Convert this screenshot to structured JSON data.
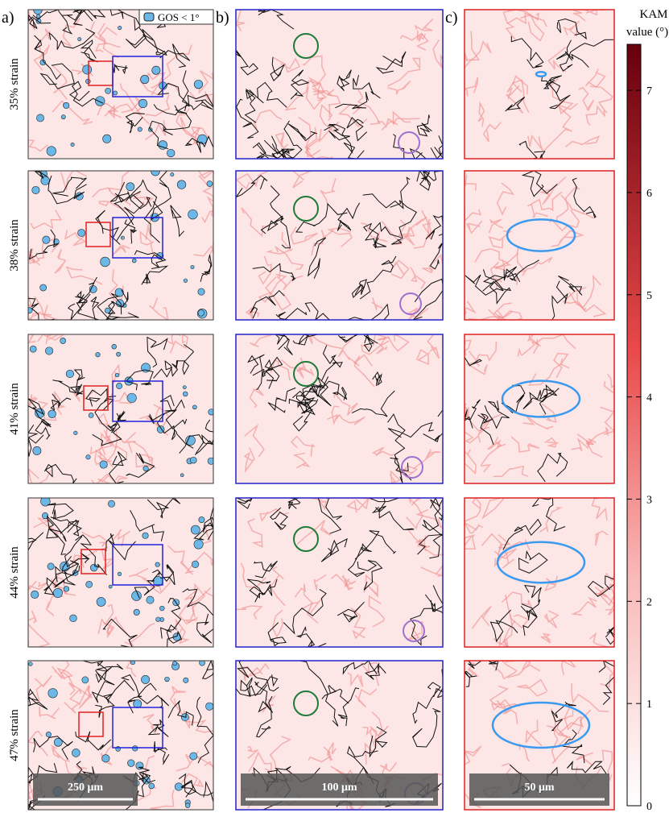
{
  "panel_labels": [
    "a)",
    "b)",
    "c)"
  ],
  "legend": "GOS < 1°",
  "rows": [
    "35%  strain",
    "38%  strain",
    "41%  strain",
    "44%  strain",
    "47%  strain"
  ],
  "colorbar": {
    "title_lines": [
      "KAM",
      "value (°)"
    ],
    "lim": [
      0,
      7.45
    ],
    "ticks": [
      0,
      1,
      2,
      3,
      4,
      5,
      6,
      7
    ]
  },
  "scale_bars": [
    "250 μm",
    "100 μm",
    "50 μm"
  ]
}
